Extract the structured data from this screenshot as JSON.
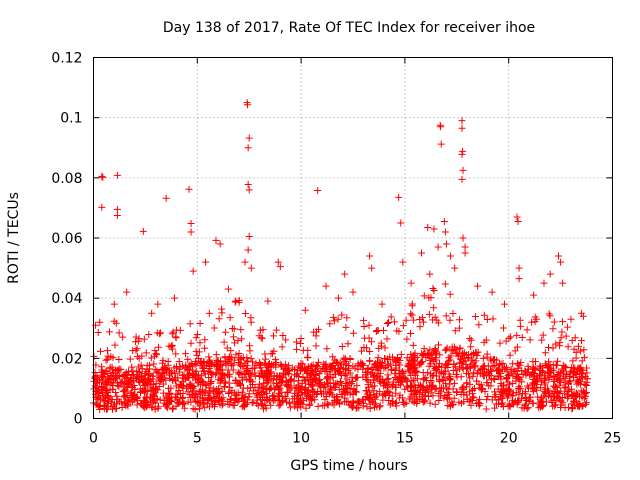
{
  "chart_data": {
    "type": "scatter",
    "title": "Day 138 of 2017, Rate Of TEC Index for receiver ihoe",
    "xlabel": "GPS time / hours",
    "ylabel": "ROTI / TECUs",
    "xlim": [
      0,
      25
    ],
    "ylim": [
      0,
      0.12
    ],
    "x_ticks": [
      "0",
      "5",
      "10",
      "15",
      "20",
      "25"
    ],
    "y_ticks": [
      "0",
      "0.02",
      "0.04",
      "0.06",
      "0.08",
      "0.1",
      "0.12"
    ],
    "grid": true,
    "marker": "plus",
    "color": "#ff0000",
    "series": [
      {
        "name": "ROTI",
        "points": [
          [
            0.4,
            0.0805
          ],
          [
            0.45,
            0.0802
          ],
          [
            0.4,
            0.0702
          ],
          [
            1.15,
            0.0808
          ],
          [
            1.15,
            0.0695
          ],
          [
            1.15,
            0.0675
          ],
          [
            2.4,
            0.0622
          ],
          [
            3.5,
            0.0732
          ],
          [
            4.6,
            0.0762
          ],
          [
            4.7,
            0.0648
          ],
          [
            4.7,
            0.062
          ],
          [
            4.8,
            0.049
          ],
          [
            5.4,
            0.052
          ],
          [
            5.9,
            0.0592
          ],
          [
            6.1,
            0.058
          ],
          [
            7.4,
            0.105
          ],
          [
            7.42,
            0.1043
          ],
          [
            7.5,
            0.0932
          ],
          [
            7.45,
            0.09
          ],
          [
            7.45,
            0.0778
          ],
          [
            7.5,
            0.076
          ],
          [
            7.5,
            0.0605
          ],
          [
            7.45,
            0.056
          ],
          [
            7.3,
            0.052
          ],
          [
            7.6,
            0.05
          ],
          [
            8.9,
            0.052
          ],
          [
            9.0,
            0.0505
          ],
          [
            10.8,
            0.0758
          ],
          [
            11.2,
            0.044
          ],
          [
            12.1,
            0.048
          ],
          [
            13.3,
            0.054
          ],
          [
            13.4,
            0.05
          ],
          [
            14.7,
            0.0735
          ],
          [
            14.8,
            0.065
          ],
          [
            14.9,
            0.052
          ],
          [
            15.8,
            0.055
          ],
          [
            16.1,
            0.0635
          ],
          [
            16.4,
            0.063
          ],
          [
            16.6,
            0.057
          ],
          [
            16.7,
            0.0975
          ],
          [
            16.72,
            0.097
          ],
          [
            16.75,
            0.0912
          ],
          [
            16.9,
            0.0655
          ],
          [
            16.95,
            0.062
          ],
          [
            17.0,
            0.058
          ],
          [
            17.2,
            0.054
          ],
          [
            17.4,
            0.05
          ],
          [
            17.75,
            0.099
          ],
          [
            17.75,
            0.0965
          ],
          [
            17.78,
            0.0888
          ],
          [
            17.75,
            0.0878
          ],
          [
            17.8,
            0.0825
          ],
          [
            17.75,
            0.0795
          ],
          [
            17.8,
            0.06
          ],
          [
            17.9,
            0.057
          ],
          [
            17.9,
            0.055
          ],
          [
            19.2,
            0.042
          ],
          [
            20.4,
            0.067
          ],
          [
            20.45,
            0.0655
          ],
          [
            20.5,
            0.05
          ],
          [
            20.5,
            0.0465
          ],
          [
            21.7,
            0.045
          ],
          [
            22.0,
            0.048
          ],
          [
            22.4,
            0.054
          ],
          [
            22.5,
            0.052
          ],
          [
            22.6,
            0.045
          ],
          [
            23.5,
            0.035
          ],
          [
            23.6,
            0.034
          ],
          [
            0.1,
            0.031
          ],
          [
            0.3,
            0.032
          ],
          [
            1.0,
            0.038
          ],
          [
            1.6,
            0.042
          ],
          [
            2.8,
            0.035
          ],
          [
            3.1,
            0.038
          ],
          [
            3.9,
            0.04
          ],
          [
            6.5,
            0.043
          ],
          [
            8.4,
            0.039
          ],
          [
            10.2,
            0.036
          ],
          [
            11.8,
            0.04
          ],
          [
            12.5,
            0.042
          ],
          [
            13.9,
            0.038
          ],
          [
            15.3,
            0.045
          ],
          [
            16.2,
            0.048
          ],
          [
            18.5,
            0.044
          ],
          [
            19.8,
            0.038
          ],
          [
            21.2,
            0.041
          ],
          [
            23.0,
            0.033
          ]
        ],
        "dense_envelope": {
          "x_range": [
            0,
            23.8
          ],
          "hours": [
            0,
            1,
            2,
            3,
            4,
            5,
            6,
            7,
            8,
            9,
            10,
            11,
            12,
            13,
            14,
            15,
            16,
            17,
            18,
            19,
            20,
            21,
            22,
            23,
            23.8
          ],
          "low": [
            0.003,
            0.003,
            0.004,
            0.003,
            0.003,
            0.003,
            0.004,
            0.004,
            0.003,
            0.004,
            0.003,
            0.004,
            0.004,
            0.003,
            0.004,
            0.004,
            0.005,
            0.004,
            0.004,
            0.003,
            0.004,
            0.003,
            0.004,
            0.003,
            0.004
          ],
          "mid": [
            0.011,
            0.012,
            0.011,
            0.012,
            0.012,
            0.013,
            0.014,
            0.015,
            0.013,
            0.013,
            0.012,
            0.013,
            0.014,
            0.013,
            0.014,
            0.015,
            0.016,
            0.017,
            0.016,
            0.014,
            0.013,
            0.013,
            0.013,
            0.012,
            0.012
          ],
          "high": [
            0.028,
            0.033,
            0.028,
            0.03,
            0.031,
            0.034,
            0.037,
            0.04,
            0.032,
            0.03,
            0.029,
            0.033,
            0.037,
            0.033,
            0.033,
            0.036,
            0.043,
            0.045,
            0.04,
            0.034,
            0.032,
            0.034,
            0.036,
            0.03,
            0.028
          ],
          "count": 2400
        }
      }
    ]
  }
}
